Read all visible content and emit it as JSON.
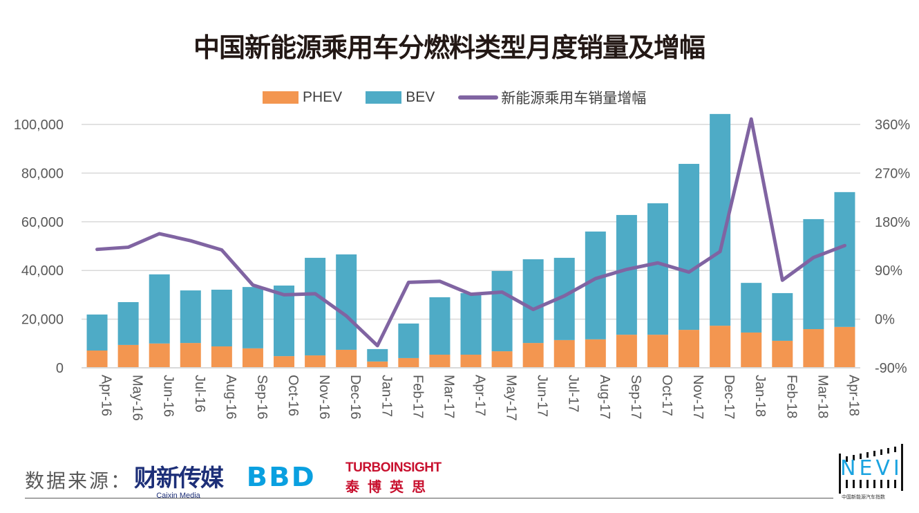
{
  "title": "中国新能源乘用车分燃料类型月度销量及增幅",
  "legend": {
    "phev": "PHEV",
    "bev": "BEV",
    "growth": "新能源乘用车销量增幅"
  },
  "colors": {
    "phev": "#f39650",
    "bev": "#4eabc6",
    "growth": "#8064a2",
    "grid": "#d9d9d9"
  },
  "chart_data": {
    "type": "bar",
    "stacked": true,
    "title": "中国新能源乘用车分燃料类型月度销量及增幅",
    "xlabel": "",
    "ylabel": "",
    "ylim": [
      0,
      100000
    ],
    "y_ticks": [
      "0",
      "20,000",
      "40,000",
      "60,000",
      "80,000",
      "100,000"
    ],
    "y2lim": [
      -90,
      360
    ],
    "y2_ticks": [
      "-90%",
      "0%",
      "90%",
      "180%",
      "270%",
      "360%"
    ],
    "grid": true,
    "legend_position": "top-center",
    "categories": [
      "Apr-16",
      "May-16",
      "Jun-16",
      "Jul-16",
      "Aug-16",
      "Sep-16",
      "Oct-16",
      "Nov-16",
      "Dec-16",
      "Jan-17",
      "Feb-17",
      "Mar-17",
      "Apr-17",
      "May-17",
      "Jun-17",
      "Jul-17",
      "Aug-17",
      "Sep-17",
      "Oct-17",
      "Nov-17",
      "Dec-17",
      "Jan-18",
      "Feb-18",
      "Mar-18",
      "Apr-18"
    ],
    "series": [
      {
        "name": "PHEV",
        "type": "bar",
        "axis": "left",
        "values": [
          7100,
          9400,
          10000,
          10200,
          8800,
          8000,
          4800,
          5100,
          7400,
          2600,
          4000,
          5400,
          5400,
          6800,
          10200,
          11400,
          11700,
          13600,
          13600,
          15600,
          17300,
          14500,
          11100,
          15900,
          16800
        ]
      },
      {
        "name": "BEV",
        "type": "bar",
        "axis": "left",
        "values": [
          14800,
          17600,
          28400,
          21600,
          23300,
          25200,
          29000,
          40100,
          39200,
          5100,
          14200,
          23600,
          25300,
          33000,
          34400,
          33800,
          44300,
          49200,
          54000,
          68200,
          87000,
          20400,
          19600,
          45200,
          55400
        ]
      },
      {
        "name": "新能源乘用车销量增幅",
        "type": "line",
        "axis": "right",
        "unit": "%",
        "values": [
          129,
          133,
          158,
          145,
          128,
          63,
          45,
          47,
          6,
          -49,
          68,
          70,
          46,
          50,
          18,
          43,
          75,
          92,
          104,
          87,
          125,
          370,
          72,
          114,
          136
        ]
      }
    ]
  },
  "footer": {
    "source_label": "数据来源：",
    "caixin_cn": "财新传媒",
    "caixin_en": "Caixin Media",
    "bbd": "BBD",
    "turbo_en": "TURBOINSIGHT",
    "turbo_cn": "泰博英思",
    "nevi": "NEVI",
    "nevi_sub": "中国新能源汽车指数"
  }
}
